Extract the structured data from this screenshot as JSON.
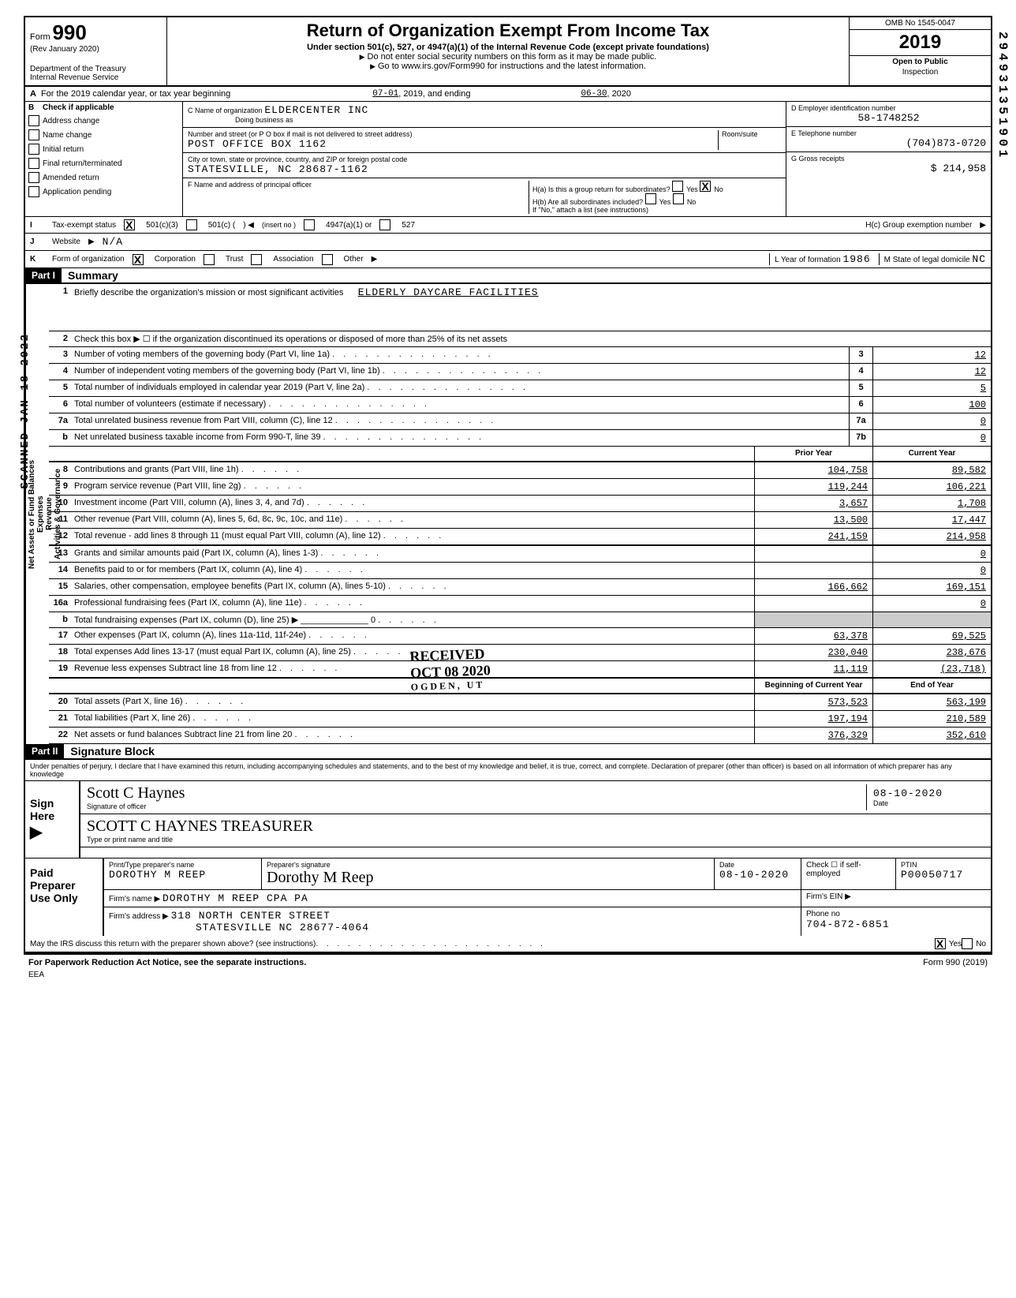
{
  "header": {
    "form_word": "Form",
    "form_number": "990",
    "rev": "(Rev January 2020)",
    "dept": "Department of the Treasury",
    "irs": "Internal Revenue Service",
    "title": "Return of Organization Exempt From Income Tax",
    "subtitle": "Under section 501(c), 527, or 4947(a)(1) of the Internal Revenue Code (except private foundations)",
    "note1": "Do not enter social security numbers on this form as it may be made public.",
    "note2": "Go to www.irs.gov/Form990 for instructions and the latest information.",
    "omb": "OMB No 1545-0047",
    "year": "2019",
    "open": "Open to Public",
    "inspection": "Inspection"
  },
  "line_a": {
    "label": "A",
    "text": "For the 2019 calendar year, or tax year beginning",
    "begin": "07-01",
    "mid": ", 2019, and ending",
    "end": "06-30",
    "endyear": ", 2020"
  },
  "section_b": {
    "label": "B",
    "check_label": "Check if applicable",
    "checks": [
      "Address change",
      "Name change",
      "Initial return",
      "Final return/terminated",
      "Amended return",
      "Application pending"
    ],
    "c_label": "C  Name of organization",
    "org_name": "ELDERCENTER INC",
    "dba_label": "Doing business as",
    "dba": "",
    "addr_label": "Number and street (or P O box if mail is not delivered to street address)",
    "room_label": "Room/suite",
    "addr": "POST OFFICE BOX 1162",
    "city_label": "City or town, state or province, country, and ZIP or foreign postal code",
    "city": "STATESVILLE, NC 28687-1162",
    "f_label": "F  Name and address of principal officer",
    "d_label": "D  Employer identification number",
    "ein": "58-1748252",
    "e_label": "E  Telephone number",
    "phone": "(704)873-0720",
    "g_label": "G  Gross receipts",
    "gross": "214,958",
    "ha_label": "H(a) Is this a group return for subordinates?",
    "hb_label": "H(b) Are all subordinates included?",
    "yes": "Yes",
    "no": "No",
    "h_note": "If \"No,\" attach a list (see instructions)",
    "hc_label": "H(c)  Group exemption number"
  },
  "line_i": {
    "lbl": "I",
    "text": "Tax-exempt status",
    "opts": [
      "501(c)(3)",
      "501(c) (",
      "4947(a)(1) or",
      "527"
    ],
    "insert": "(insert no )"
  },
  "line_j": {
    "lbl": "J",
    "text": "Website",
    "val": "N/A"
  },
  "line_k": {
    "lbl": "K",
    "text": "Form of organization",
    "opts": [
      "Corporation",
      "Trust",
      "Association",
      "Other"
    ],
    "l_label": "L  Year of formation",
    "year": "1986",
    "m_label": "M  State of legal domicile",
    "state": "NC"
  },
  "part1": {
    "header": "Part I",
    "title": "Summary",
    "line1_num": "1",
    "line1": "Briefly describe the organization's mission or most significant activities",
    "line1_val": "ELDERLY DAYCARE FACILITIES",
    "line2_num": "2",
    "line2": "Check this box ▶ ☐ if the organization discontinued its operations or disposed of more than 25% of its net assets",
    "sidebar_gov": "Activities & Governance",
    "sidebar_rev": "Revenue",
    "sidebar_exp": "Expenses",
    "sidebar_net": "Net Assets or Fund Balances",
    "prior_label": "Prior Year",
    "current_label": "Current Year",
    "begin_label": "Beginning of Current Year",
    "end_label": "End of Year",
    "lines_single": [
      {
        "n": "3",
        "t": "Number of voting members of the governing body (Part VI, line 1a)",
        "box": "3",
        "v": "12"
      },
      {
        "n": "4",
        "t": "Number of independent voting members of the governing body (Part VI, line 1b)",
        "box": "4",
        "v": "12"
      },
      {
        "n": "5",
        "t": "Total number of individuals employed in calendar year 2019 (Part V, line 2a)",
        "box": "5",
        "v": "5"
      },
      {
        "n": "6",
        "t": "Total number of volunteers (estimate if necessary)",
        "box": "6",
        "v": "100"
      },
      {
        "n": "7a",
        "t": "Total unrelated business revenue from Part VIII, column (C), line 12",
        "box": "7a",
        "v": "0"
      },
      {
        "n": "b",
        "t": "Net unrelated business taxable income from Form 990-T, line 39",
        "box": "7b",
        "v": "0"
      }
    ],
    "lines_double": [
      {
        "n": "8",
        "t": "Contributions and grants (Part VIII, line 1h)",
        "p": "104,758",
        "c": "89,582"
      },
      {
        "n": "9",
        "t": "Program service revenue (Part VIII, line 2g)",
        "p": "119,244",
        "c": "106,221"
      },
      {
        "n": "10",
        "t": "Investment income (Part VIII, column (A), lines 3, 4, and 7d)",
        "p": "3,657",
        "c": "1,708"
      },
      {
        "n": "11",
        "t": "Other revenue (Part VIII, column (A), lines 5, 6d, 8c, 9c, 10c, and 11e)",
        "p": "13,500",
        "c": "17,447"
      },
      {
        "n": "12",
        "t": "Total revenue - add lines 8 through 11 (must equal Part VIII, column (A), line 12)",
        "p": "241,159",
        "c": "214,958"
      },
      {
        "n": "13",
        "t": "Grants and similar amounts paid (Part IX, column (A), lines 1-3)",
        "p": "",
        "c": "0"
      },
      {
        "n": "14",
        "t": "Benefits paid to or for members (Part IX, column (A), line 4)",
        "p": "",
        "c": "0"
      },
      {
        "n": "15",
        "t": "Salaries, other compensation, employee benefits (Part IX, column (A), lines 5-10)",
        "p": "166,662",
        "c": "169,151"
      },
      {
        "n": "16a",
        "t": "Professional fundraising fees (Part IX, column (A), line 11e)",
        "p": "",
        "c": "0"
      },
      {
        "n": "b",
        "t": "Total fundraising expenses (Part IX, column (D), line 25)   ▶ ______________ 0",
        "p": "shade",
        "c": "shade"
      },
      {
        "n": "17",
        "t": "Other expenses (Part IX, column (A), lines 11a-11d, 11f-24e)",
        "p": "63,378",
        "c": "69,525"
      },
      {
        "n": "18",
        "t": "Total expenses  Add lines 13-17 (must equal Part IX, column (A), line 25)",
        "p": "230,040",
        "c": "238,676"
      },
      {
        "n": "19",
        "t": "Revenue less expenses  Subtract line 18 from line 12",
        "p": "11,119",
        "c": "(23,718)"
      }
    ],
    "lines_balance": [
      {
        "n": "20",
        "t": "Total assets (Part X, line 16)",
        "p": "573,523",
        "c": "563,199"
      },
      {
        "n": "21",
        "t": "Total liabilities (Part X, line 26)",
        "p": "197,194",
        "c": "210,589"
      },
      {
        "n": "22",
        "t": "Net assets or fund balances  Subtract line 21 from line 20",
        "p": "376,329",
        "c": "352,610"
      }
    ]
  },
  "part2": {
    "header": "Part II",
    "title": "Signature Block",
    "penalties": "Under penalties of perjury, I declare that I have examined this return, including accompanying schedules and statements, and to the best of my knowledge and belief, it is true, correct, and complete. Declaration of preparer (other than officer) is based on all information of which preparer has any knowledge"
  },
  "sign": {
    "here": "Sign Here",
    "sig_label": "Signature of officer",
    "sig_handwrite": "Scott C Haynes",
    "name_label": "Type or print name and title",
    "name_val": "SCOTT C HAYNES  TREASURER",
    "date_label": "Date",
    "date": "08-10-2020"
  },
  "paid": {
    "label": "Paid Preparer Use Only",
    "prep_name_label": "Print/Type preparer's name",
    "prep_name": "DOROTHY M REEP",
    "prep_sig_label": "Preparer's signature",
    "prep_date": "08-10-2020",
    "check_label": "Check ☐ if self-employed",
    "ptin_label": "PTIN",
    "ptin": "P00050717",
    "firm_name_label": "Firm's name",
    "firm_name": "DOROTHY M REEP CPA PA",
    "firm_ein_label": "Firm's EIN",
    "firm_addr_label": "Firm's address",
    "firm_addr1": "318 NORTH CENTER STREET",
    "firm_addr2": "STATESVILLE NC 28677-4064",
    "phone_label": "Phone no",
    "phone": "704-872-6851"
  },
  "footer": {
    "discuss": "May the IRS discuss this return with the preparer shown above? (see instructions)",
    "yes": "Yes",
    "no": "No",
    "paperwork": "For Paperwork Reduction Act Notice, see the separate instructions.",
    "eea": "EEA",
    "formid": "Form 990 (2019)"
  },
  "stamps": {
    "side": "SCANNED JAN 18 2022",
    "received": "RECEIVED",
    "received_date": "OCT 08 2020",
    "ogden": "OGDEN, UT"
  },
  "side_margin": "294931351901"
}
